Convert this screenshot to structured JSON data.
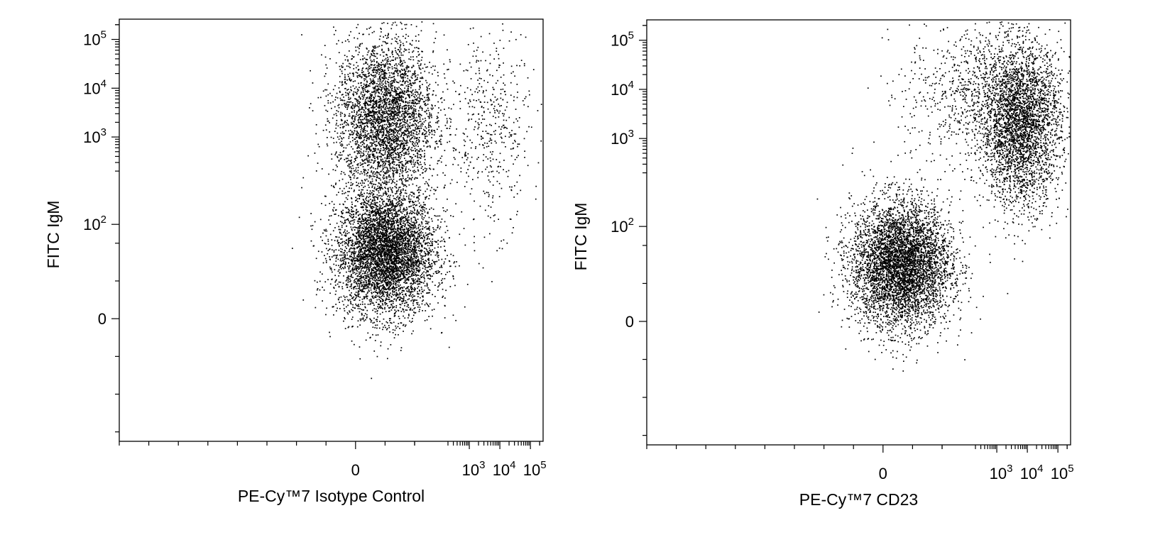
{
  "chart_data": [
    {
      "type": "scatter",
      "title": "",
      "xlabel": "PE-Cy™7 Isotype Control",
      "ylabel": "FITC IgM",
      "x_scale": "biexponential",
      "y_scale": "biexponential",
      "x_tick_labels": [
        {
          "value": 0,
          "base": "0",
          "exp": ""
        },
        {
          "value": 1000,
          "base": "10",
          "exp": "3"
        },
        {
          "value": 10000,
          "base": "10",
          "exp": "4"
        },
        {
          "value": 100000,
          "base": "10",
          "exp": "5"
        }
      ],
      "y_tick_labels": [
        {
          "value": 0,
          "base": "0",
          "exp": ""
        },
        {
          "value": 100,
          "base": "10",
          "exp": "2"
        },
        {
          "value": 1000,
          "base": "10",
          "exp": "3"
        },
        {
          "value": 10000,
          "base": "10",
          "exp": "4"
        },
        {
          "value": 100000,
          "base": "10",
          "exp": "5"
        }
      ],
      "grid": false,
      "populations": [
        {
          "x_center": 50,
          "y_center": 70,
          "approx_fraction": 0.55
        },
        {
          "x_center": 50,
          "y_center": 2500,
          "approx_fraction": 0.4
        },
        {
          "x_center": 5000,
          "y_center": 1500,
          "approx_fraction": 0.05
        }
      ]
    },
    {
      "type": "scatter",
      "title": "",
      "xlabel": "PE-Cy™7 CD23",
      "ylabel": "FITC IgM",
      "x_scale": "biexponential",
      "y_scale": "biexponential",
      "x_tick_labels": [
        {
          "value": 0,
          "base": "0",
          "exp": ""
        },
        {
          "value": 1000,
          "base": "10",
          "exp": "3"
        },
        {
          "value": 10000,
          "base": "10",
          "exp": "4"
        },
        {
          "value": 100000,
          "base": "10",
          "exp": "5"
        }
      ],
      "y_tick_labels": [
        {
          "value": 0,
          "base": "0",
          "exp": ""
        },
        {
          "value": 100,
          "base": "10",
          "exp": "2"
        },
        {
          "value": 1000,
          "base": "10",
          "exp": "3"
        },
        {
          "value": 10000,
          "base": "10",
          "exp": "4"
        },
        {
          "value": 100000,
          "base": "10",
          "exp": "5"
        }
      ],
      "grid": false,
      "populations": [
        {
          "x_center": 30,
          "y_center": 60,
          "approx_fraction": 0.55
        },
        {
          "x_center": 6000,
          "y_center": 1800,
          "approx_fraction": 0.33
        },
        {
          "x_center": 400,
          "y_center": 8000,
          "approx_fraction": 0.12
        }
      ]
    }
  ],
  "colors": {
    "dots": "#000000",
    "frame": "#000000",
    "background": "#ffffff"
  }
}
